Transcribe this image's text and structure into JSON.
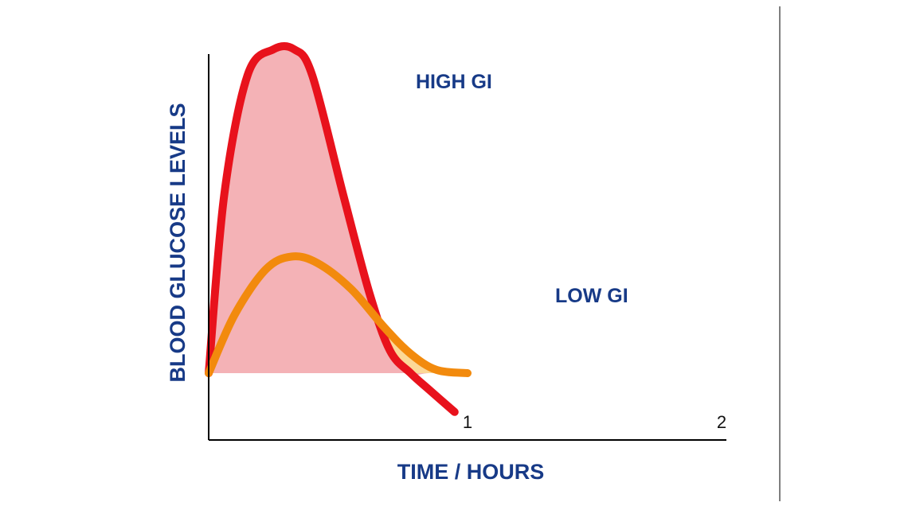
{
  "chart_data": {
    "type": "line",
    "title": "",
    "xlabel": "TIME / HOURS",
    "ylabel": "BLOOD GLUCOSE LEVELS",
    "x_ticks": [
      "1",
      "2"
    ],
    "xlim": [
      0,
      2
    ],
    "grid": false,
    "legend": "none",
    "series": [
      {
        "name": "HIGH GI",
        "stroke_color": "#e8121c",
        "fill_color": "#f4b2b6",
        "points": [
          [
            0.0,
            0.0
          ],
          [
            0.06,
            0.55
          ],
          [
            0.15,
            0.92
          ],
          [
            0.25,
            1.0
          ],
          [
            0.33,
            1.0
          ],
          [
            0.4,
            0.92
          ],
          [
            0.52,
            0.55
          ],
          [
            0.62,
            0.25
          ],
          [
            0.7,
            0.07
          ],
          [
            0.78,
            0.0
          ],
          [
            0.85,
            -0.05
          ],
          [
            0.95,
            -0.12
          ]
        ]
      },
      {
        "name": "LOW GI",
        "stroke_color": "#f28a0d",
        "fill_color": "#fcd897",
        "points": [
          [
            0.0,
            0.0
          ],
          [
            0.1,
            0.18
          ],
          [
            0.22,
            0.32
          ],
          [
            0.32,
            0.36
          ],
          [
            0.42,
            0.34
          ],
          [
            0.55,
            0.26
          ],
          [
            0.68,
            0.14
          ],
          [
            0.78,
            0.06
          ],
          [
            0.88,
            0.01
          ],
          [
            1.0,
            0.0
          ]
        ]
      }
    ],
    "axis_color": "#000000",
    "label_color": "#173a87",
    "tick_color": "#111111"
  }
}
